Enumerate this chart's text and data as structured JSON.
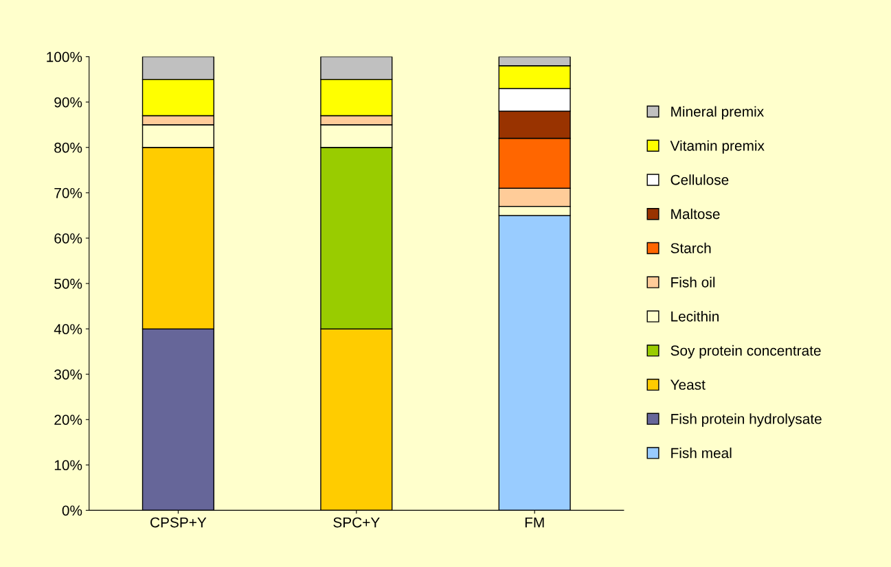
{
  "chart_data": {
    "type": "bar",
    "stacked": true,
    "categories": [
      "CPSP+Y",
      "SPC+Y",
      "FM"
    ],
    "series": [
      {
        "name": "Fish meal",
        "color": "#99ccff",
        "values": [
          null,
          null,
          65
        ]
      },
      {
        "name": "Fish protein hydrolysate",
        "color": "#666699",
        "values": [
          40,
          null,
          null
        ]
      },
      {
        "name": "Yeast",
        "color": "#ffcc00",
        "values": [
          40,
          40,
          null
        ]
      },
      {
        "name": "Soy protein concentrate",
        "color": "#99cc00",
        "values": [
          null,
          40,
          null
        ]
      },
      {
        "name": "Lecithin",
        "color": "#ffffcc",
        "values": [
          5,
          5,
          2
        ]
      },
      {
        "name": "Fish oil",
        "color": "#ffcc99",
        "values": [
          2,
          2,
          4
        ]
      },
      {
        "name": "Starch",
        "color": "#ff6600",
        "values": [
          null,
          null,
          11
        ]
      },
      {
        "name": "Maltose",
        "color": "#993300",
        "values": [
          null,
          null,
          6
        ]
      },
      {
        "name": "Cellulose",
        "color": "#ffffff",
        "values": [
          null,
          null,
          5
        ]
      },
      {
        "name": "Vitamin premix",
        "color": "#ffff00",
        "values": [
          8,
          8,
          5
        ]
      },
      {
        "name": "Mineral premix",
        "color": "#c0c0c0",
        "values": [
          5,
          5,
          2
        ]
      }
    ],
    "ylim": [
      0,
      100
    ],
    "yticks": [
      {
        "value": 0,
        "label": "0%"
      },
      {
        "value": 10,
        "label": "10%"
      },
      {
        "value": 20,
        "label": "20%"
      },
      {
        "value": 30,
        "label": "30%"
      },
      {
        "value": 40,
        "label": "40%"
      },
      {
        "value": 50,
        "label": "50%"
      },
      {
        "value": 60,
        "label": "60%"
      },
      {
        "value": 70,
        "label": "70%"
      },
      {
        "value": 80,
        "label": "80%"
      },
      {
        "value": 90,
        "label": "90%"
      },
      {
        "value": 100,
        "label": "100%"
      }
    ],
    "grid": false,
    "legend": "right"
  }
}
